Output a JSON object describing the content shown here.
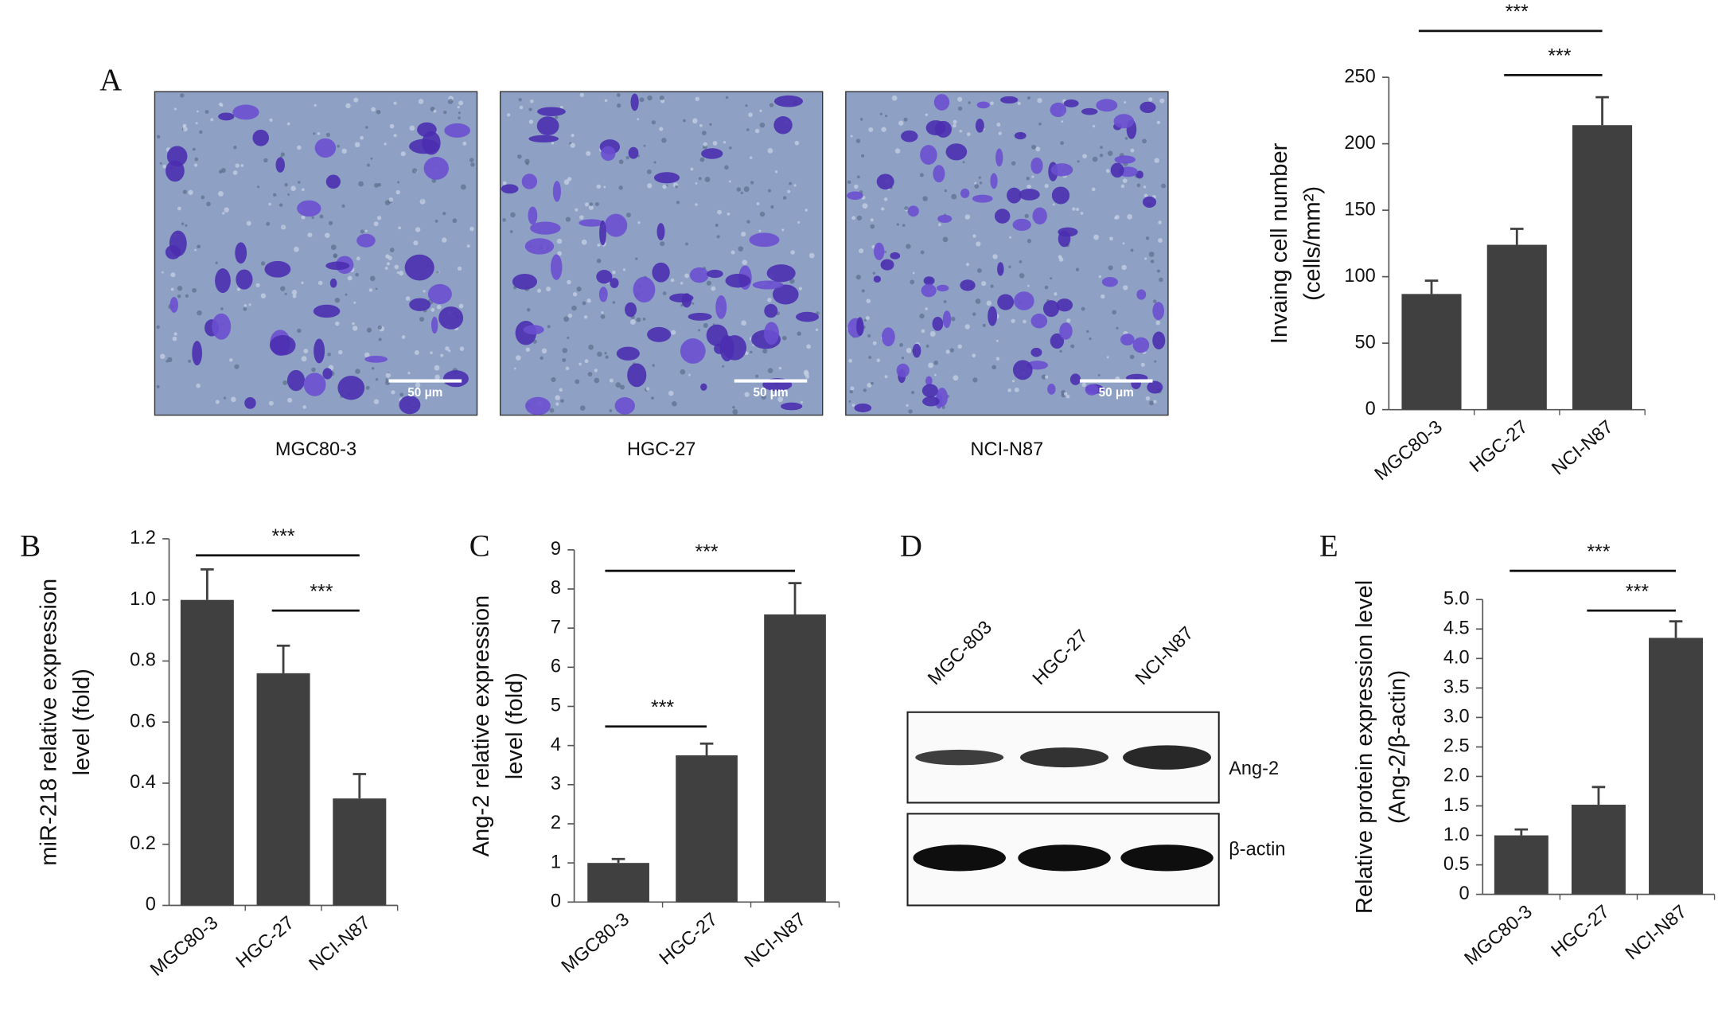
{
  "chart_data": [
    {
      "type": "bar",
      "panel": "A",
      "categories": [
        "MGC80-3",
        "HGC-27",
        "NCI-N87"
      ],
      "values": [
        87,
        124,
        214
      ],
      "errors": [
        10,
        12,
        21
      ],
      "color": "#404040",
      "ylabel": [
        "Invaing cell number",
        "(cells/mm²)"
      ],
      "ylim": [
        0,
        250
      ],
      "yticks": [
        0,
        50,
        100,
        150,
        200,
        250
      ],
      "annotations": [
        {
          "text": "***",
          "from": "MGC80-3",
          "to": "NCI-N87"
        },
        {
          "text": "***",
          "from": "HGC-27",
          "to": "NCI-N87"
        }
      ]
    },
    {
      "type": "bar",
      "panel": "B",
      "categories": [
        "MGC80-3",
        "HGC-27",
        "NCI-N87"
      ],
      "values": [
        1.0,
        0.76,
        0.35
      ],
      "errors": [
        0.1,
        0.09,
        0.08
      ],
      "color": "#404040",
      "ylabel": [
        "miR-218 relative expression",
        "level (fold)"
      ],
      "ylim": [
        0,
        1.2
      ],
      "yticks": [
        0,
        0.2,
        0.4,
        0.6,
        0.8,
        {
          "value": 1,
          "label": "1.0"
        },
        1.2
      ],
      "annotations": [
        {
          "text": "***",
          "from": "MGC80-3",
          "to": "NCI-N87"
        },
        {
          "text": "***",
          "from": "HGC-27",
          "to": "NCI-N87"
        }
      ]
    },
    {
      "type": "bar",
      "panel": "C",
      "categories": [
        "MGC80-3",
        "HGC-27",
        "NCI-N87"
      ],
      "values": [
        1.0,
        3.75,
        7.35
      ],
      "errors": [
        0.1,
        0.3,
        0.8
      ],
      "color": "#404040",
      "ylabel": [
        "Ang-2 relative expression",
        "level (fold)"
      ],
      "ylim": [
        0,
        9
      ],
      "yticks": [
        0,
        1,
        2,
        3,
        4,
        5,
        6,
        7,
        8,
        9
      ],
      "annotations": [
        {
          "text": "***",
          "from": "MGC80-3",
          "to": "NCI-N87"
        },
        {
          "text": "***",
          "from": "MGC80-3",
          "to": "HGC-27"
        }
      ]
    },
    {
      "type": "bar",
      "panel": "E",
      "categories": [
        "MGC80-3",
        "HGC-27",
        "NCI-N87"
      ],
      "values": [
        1.0,
        1.52,
        4.35
      ],
      "errors": [
        0.1,
        0.3,
        0.28
      ],
      "color": "#404040",
      "ylabel": [
        "Relative protein expression level",
        "(Ang-2/β-actin)"
      ],
      "ylim": [
        0,
        5
      ],
      "yticks": [
        0,
        0.5,
        {
          "value": 1,
          "label": "1.0"
        },
        1.5,
        {
          "value": 2,
          "label": "2.0"
        },
        2.5,
        {
          "value": 3,
          "label": "3.0"
        },
        3.5,
        {
          "value": 4,
          "label": "4.0"
        },
        4.5,
        {
          "value": 5,
          "label": "5.0"
        }
      ],
      "annotations": [
        {
          "text": "***",
          "from": "MGC80-3",
          "to": "NCI-N87"
        },
        {
          "text": "***",
          "from": "HGC-27",
          "to": "NCI-N87"
        }
      ]
    }
  ],
  "figure": {
    "panel_d": "D",
    "images": [
      {
        "label": "MGC80-3",
        "scale_bar": "50 μm"
      },
      {
        "label": "HGC-27",
        "scale_bar": "50 μm"
      },
      {
        "label": "NCI-N87",
        "scale_bar": "50 μm"
      }
    ],
    "blot": {
      "lanes": [
        "MGC-803",
        "HGC-27",
        "NCI-N87"
      ],
      "rows": [
        "Ang-2",
        "β-actin"
      ]
    }
  }
}
